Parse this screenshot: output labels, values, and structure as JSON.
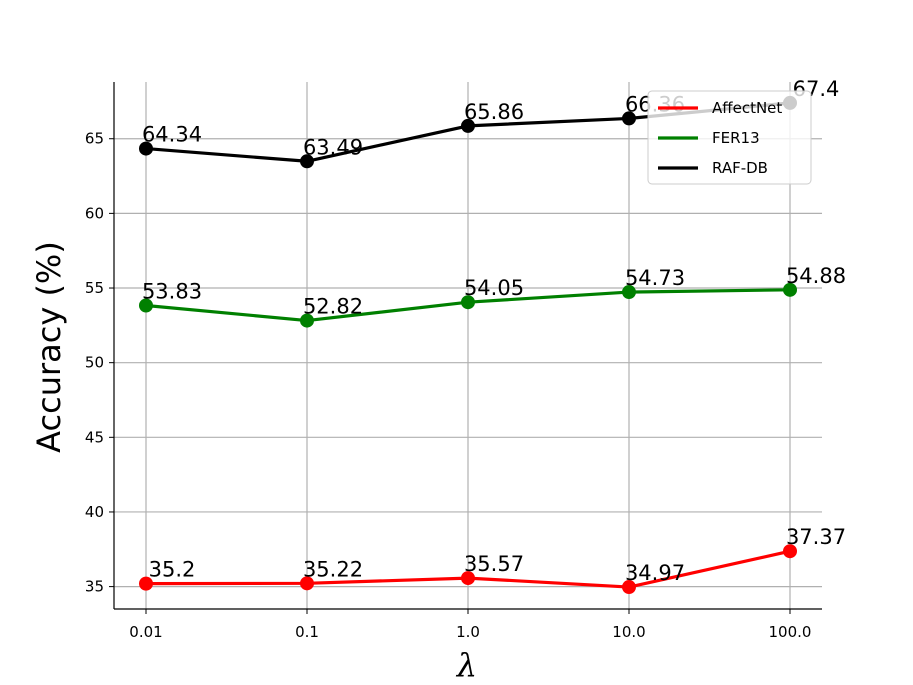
{
  "chart_data": {
    "type": "line",
    "categories": [
      "0.01",
      "0.1",
      "1.0",
      "10.0",
      "100.0"
    ],
    "xlabel": "λ",
    "ylabel": "Accuracy (%)",
    "ylim": [
      33.5,
      68.8
    ],
    "yticks": [
      "35",
      "40",
      "45",
      "50",
      "55",
      "60",
      "65"
    ],
    "grid": true,
    "legend_position": "top-right",
    "series": [
      {
        "name": "AffectNet",
        "color": "#ff0000",
        "values": [
          35.2,
          35.22,
          35.57,
          34.97,
          37.37
        ],
        "labels": [
          "35.2",
          "35.22",
          "35.57",
          "34.97",
          "37.37"
        ]
      },
      {
        "name": "FER13",
        "color": "#008000",
        "values": [
          53.83,
          52.82,
          54.05,
          54.73,
          54.88
        ],
        "labels": [
          "53.83",
          "52.82",
          "54.05",
          "54.73",
          "54.88"
        ]
      },
      {
        "name": "RAF-DB",
        "color": "#000000",
        "values": [
          64.34,
          63.49,
          65.86,
          66.36,
          67.4
        ],
        "labels": [
          "64.34",
          "63.49",
          "65.86",
          "66.36",
          "67.4"
        ]
      }
    ]
  }
}
